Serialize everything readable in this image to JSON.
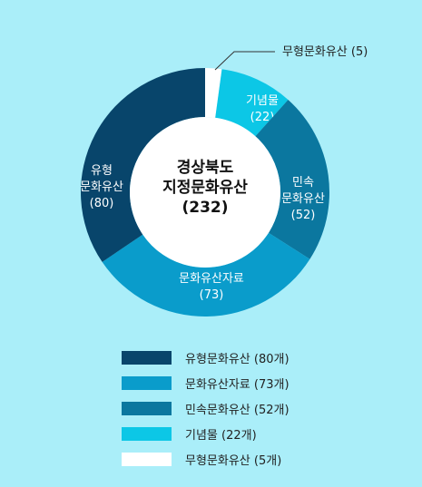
{
  "chart_data": {
    "type": "pie",
    "title": "경상북도 지정문화유산 (232)",
    "center_lines": [
      "경상북도",
      "지정문화유산",
      "(232)"
    ],
    "slices": [
      {
        "name": "유형문화유산",
        "value": 80,
        "color": "#08456b",
        "label_lines": [
          "유형",
          "문화유산",
          "(80)"
        ],
        "legend": "유형문화유산 (80개)"
      },
      {
        "name": "문화유산자료",
        "value": 73,
        "color": "#0a9ccb",
        "label_lines": [
          "문화유산자료",
          "(73)"
        ],
        "legend": "문화유산자료 (73개)"
      },
      {
        "name": "민속문화유산",
        "value": 52,
        "color": "#0b779f",
        "label_lines": [
          "민속",
          "문화유산",
          "(52)"
        ],
        "legend": "민속문화유산 (52개)"
      },
      {
        "name": "기념물",
        "value": 22,
        "color": "#0cc7e6",
        "label_lines": [
          "기념물",
          "(22)"
        ],
        "legend": "기념물 (22개)"
      },
      {
        "name": "무형문화유산",
        "value": 5,
        "color": "#ffffff",
        "label_lines": [],
        "callout": "무형문화유산 (5)",
        "legend": "무형문화유산 (5개)"
      }
    ]
  }
}
